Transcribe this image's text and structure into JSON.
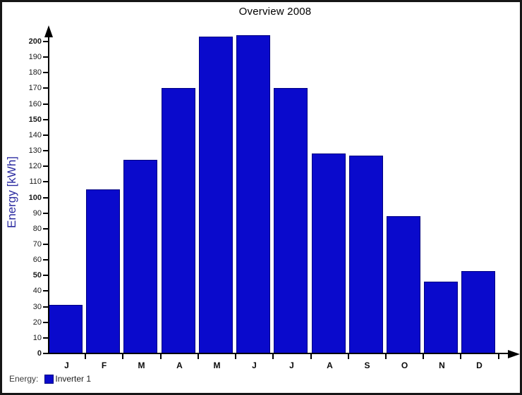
{
  "chart_data": {
    "type": "bar",
    "title": "Overview 2008",
    "ylabel": "Energy [kWh]",
    "xlabel": "",
    "categories": [
      "J",
      "F",
      "M",
      "A",
      "M",
      "J",
      "J",
      "A",
      "S",
      "O",
      "N",
      "D"
    ],
    "series": [
      {
        "name": "Inverter 1",
        "values": [
          31,
          105,
          124,
          170,
          203,
          204,
          170,
          128,
          127,
          88,
          46,
          53
        ]
      }
    ],
    "ylim": [
      0,
      200
    ],
    "ytick_step": 10,
    "bold_ytick_multiple": 50,
    "grid": false,
    "legend_position": "bottom-left",
    "colors": {
      "bar_fill": "#0a0acc",
      "bar_border": "#000080",
      "axis": "#000000",
      "ylabel_text": "#2b2ba0",
      "tick_text": "#1a1a1a",
      "title_text": "#000000"
    }
  },
  "legend": {
    "prefix": "Energy:",
    "items": [
      {
        "label": "Inverter 1",
        "swatch_color": "#0a0acc"
      }
    ]
  }
}
